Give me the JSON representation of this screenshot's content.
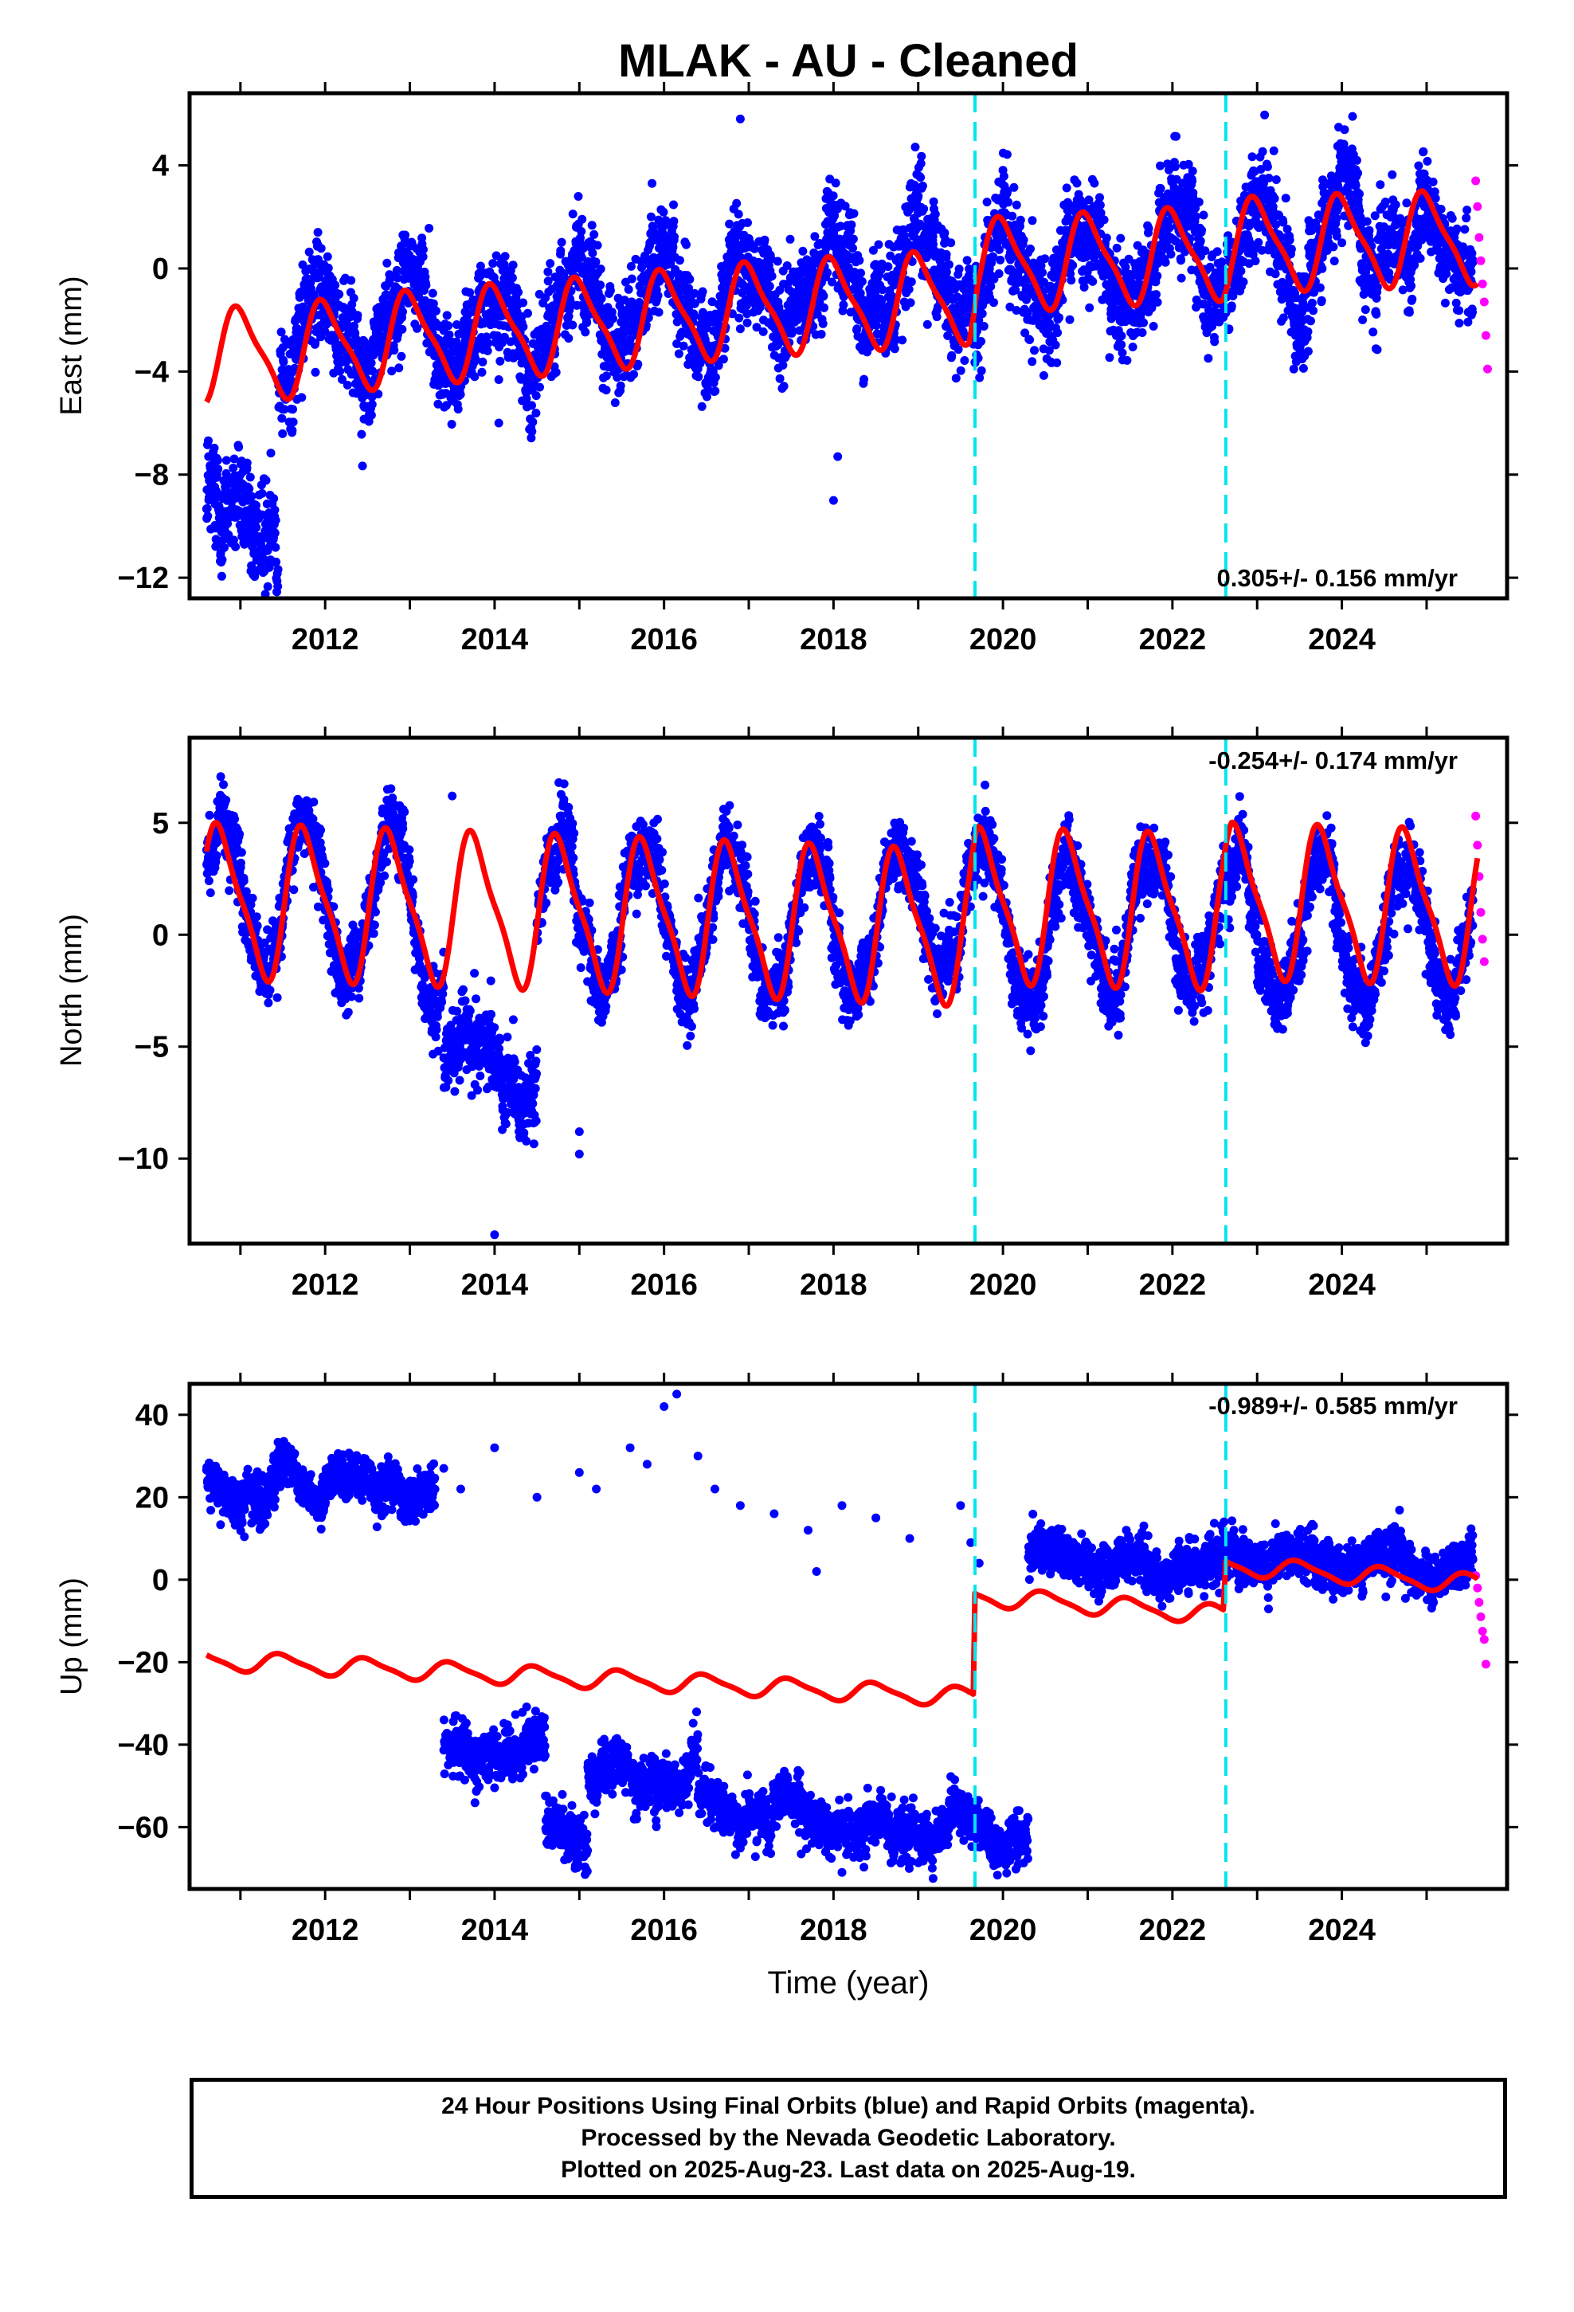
{
  "title": "MLAK  - AU - Cleaned",
  "xlabel": "Time (year)",
  "colors": {
    "final_orbits": "#0000ff",
    "rapid_orbits": "#ff00ff",
    "model": "#ff0000",
    "equipment_change": "#00e5ee"
  },
  "footer": {
    "line1": "24 Hour Positions Using Final Orbits (blue) and Rapid Orbits (magenta).",
    "line2": "Processed by the Nevada Geodetic Laboratory.",
    "line3": "Plotted on 2025-Aug-23. Last data on 2025-Aug-19."
  },
  "chart_data": [
    {
      "type": "scatter",
      "ylabel": "East (mm)",
      "xlim": [
        2010.4,
        2025.95
      ],
      "ylim": [
        -12.8,
        6.8
      ],
      "xticks": [
        "2012",
        "2014",
        "2016",
        "2018",
        "2020",
        "2022",
        "2024"
      ],
      "yticks": [
        "4",
        "0",
        "−4",
        "−8",
        "−12"
      ],
      "ytick_values": [
        4,
        0,
        -4,
        -8,
        -12
      ],
      "rate_text": "0.305+/- 0.156 mm/yr",
      "rate_position": "bottom-right",
      "equipment_changes": [
        2019.67,
        2022.63
      ],
      "series": [
        {
          "kind": "final_points",
          "data_start": 2010.6,
          "data_end": 2025.55,
          "points_per_year": 340,
          "segments": [
            {
              "x": [
                2010.6,
                2011.45
              ],
              "level": -8.5,
              "slope": -2.5,
              "amp": 0.8,
              "noise": 1.4
            },
            {
              "x": [
                2011.45,
                2025.55
              ],
              "level": -2.6,
              "slope": 0.3,
              "amp": 1.6,
              "noise": 1.2
            }
          ],
          "outliers": [
            [
              2018.05,
              -7.3
            ],
            [
              2018.0,
              -9.0
            ],
            [
              2014.05,
              -6.0
            ],
            [
              2016.9,
              5.8
            ]
          ]
        },
        {
          "kind": "rapid_points",
          "x": [
            2025.58,
            2025.6,
            2025.62,
            2025.64,
            2025.66,
            2025.68,
            2025.7,
            2025.72
          ],
          "y": [
            3.4,
            2.4,
            1.2,
            0.3,
            -0.6,
            -1.3,
            -2.6,
            -3.9
          ]
        },
        {
          "kind": "model",
          "offsets": [
            [
              2010.6,
              -3.4
            ],
            [
              2011.6,
              -3.2
            ],
            [
              2013.0,
              -2.7
            ],
            [
              2015.0,
              -2.2
            ],
            [
              2017.0,
              -1.6
            ],
            [
              2019.6,
              -1.1
            ],
            [
              2019.7,
              0.1
            ],
            [
              2022.6,
              0.6
            ],
            [
              2022.7,
              0.9
            ],
            [
              2025.6,
              1.2
            ]
          ],
          "amp": 1.7,
          "phase_year": 0.75
        }
      ]
    },
    {
      "type": "scatter",
      "ylabel": "North (mm)",
      "xlim": [
        2010.4,
        2025.95
      ],
      "ylim": [
        -13.8,
        8.8
      ],
      "xticks": [
        "2012",
        "2014",
        "2016",
        "2018",
        "2020",
        "2022",
        "2024"
      ],
      "yticks": [
        "5",
        "0",
        "−5",
        "−10"
      ],
      "ytick_values": [
        5,
        0,
        -5,
        -10
      ],
      "rate_text": "-0.254+/- 0.174 mm/yr",
      "rate_position": "top-right",
      "equipment_changes": [
        2019.67,
        2022.63
      ],
      "series": [
        {
          "kind": "final_points",
          "data_start": 2010.6,
          "data_end": 2025.55,
          "points_per_year": 340,
          "segments": [
            {
              "x": [
                2010.6,
                2013.4
              ],
              "level": 1.5,
              "slope": -0.1,
              "amp": 3.3,
              "noise": 1.0
            },
            {
              "x": [
                2013.4,
                2014.5
              ],
              "level": -5.2,
              "slope": -1.0,
              "amp": 1.5,
              "noise": 1.1
            },
            {
              "x": [
                2014.5,
                2025.55
              ],
              "level": 1.0,
              "slope": -0.05,
              "amp": 3.1,
              "noise": 1.0
            }
          ],
          "outliers": [
            [
              2014.0,
              -13.4
            ],
            [
              2015.0,
              -9.8
            ],
            [
              2015.0,
              -8.8
            ],
            [
              2013.5,
              6.2
            ]
          ]
        },
        {
          "kind": "rapid_points",
          "x": [
            2025.58,
            2025.6,
            2025.62,
            2025.64,
            2025.66,
            2025.68
          ],
          "y": [
            5.3,
            4.0,
            2.6,
            1.0,
            -0.2,
            -1.2
          ]
        },
        {
          "kind": "model",
          "offsets": [
            [
              2010.6,
              1.5
            ],
            [
              2014.0,
              1.1
            ],
            [
              2019.6,
              0.3
            ],
            [
              2019.7,
              1.3
            ],
            [
              2022.6,
              1.0
            ],
            [
              2022.7,
              1.5
            ],
            [
              2025.6,
              1.2
            ]
          ],
          "amp": 3.2,
          "phase_year": 0.52
        }
      ]
    },
    {
      "type": "scatter",
      "ylabel": "Up (mm)",
      "xlim": [
        2010.4,
        2025.95
      ],
      "ylim": [
        -75.0,
        47.5
      ],
      "xticks": [
        "2012",
        "2014",
        "2016",
        "2018",
        "2020",
        "2022",
        "2024"
      ],
      "yticks": [
        "40",
        "20",
        "0",
        "−20",
        "−40",
        "−60"
      ],
      "ytick_values": [
        40,
        20,
        0,
        -20,
        -40,
        -60
      ],
      "rate_text": "-0.989+/- 0.585 mm/yr",
      "rate_position": "top-right",
      "equipment_changes": [
        2019.67,
        2022.63
      ],
      "series": [
        {
          "kind": "final_points",
          "points_per_year": 320,
          "segments": [
            {
              "x": [
                2010.6,
                2013.3
              ],
              "level": 23.0,
              "slope": 0.0,
              "amp": 3.0,
              "noise": 3.5
            },
            {
              "x": [
                2013.4,
                2014.6
              ],
              "level": -43.0,
              "slope": 0.0,
              "amp": 3.0,
              "noise": 4.0
            },
            {
              "x": [
                2014.6,
                2015.1
              ],
              "level": -58.0,
              "slope": 0.0,
              "amp": 3.0,
              "noise": 4.0
            },
            {
              "x": [
                2015.1,
                2016.4
              ],
              "level": -46.0,
              "slope": 0.0,
              "amp": 3.0,
              "noise": 4.0
            },
            {
              "x": [
                2016.4,
                2019.65
              ],
              "level": -58.0,
              "slope": -0.5,
              "amp": 3.5,
              "noise": 4.0
            },
            {
              "x": [
                2019.67,
                2020.3
              ],
              "level": -62.0,
              "slope": 0.0,
              "amp": 3.0,
              "noise": 4.0
            },
            {
              "x": [
                2020.3,
                2025.55
              ],
              "level": 6.0,
              "slope": -0.6,
              "amp": 3.0,
              "noise": 3.5
            }
          ],
          "outliers": [
            [
              2013.6,
              22
            ],
            [
              2014.0,
              32
            ],
            [
              2014.5,
              20
            ],
            [
              2015.0,
              26
            ],
            [
              2015.2,
              22
            ],
            [
              2015.6,
              32
            ],
            [
              2015.8,
              28
            ],
            [
              2016.0,
              42
            ],
            [
              2016.15,
              45
            ],
            [
              2016.4,
              30
            ],
            [
              2016.6,
              22
            ],
            [
              2016.9,
              18
            ],
            [
              2017.3,
              16
            ],
            [
              2017.7,
              12
            ],
            [
              2017.8,
              2
            ],
            [
              2018.1,
              18
            ],
            [
              2018.5,
              15
            ],
            [
              2018.9,
              10
            ],
            [
              2019.5,
              18
            ],
            [
              2019.62,
              9
            ],
            [
              2019.72,
              4
            ],
            [
              2013.4,
              27
            ]
          ]
        },
        {
          "kind": "rapid_points",
          "x": [
            2025.58,
            2025.6,
            2025.62,
            2025.64,
            2025.66,
            2025.68,
            2025.7
          ],
          "y": [
            1.0,
            -2.0,
            -5.5,
            -9.0,
            -12.5,
            -14.5,
            -20.5
          ]
        },
        {
          "kind": "model",
          "offsets": [
            [
              2010.6,
              -19.5
            ],
            [
              2019.65,
              -28.5
            ],
            [
              2019.67,
              -4.0
            ],
            [
              2022.6,
              -8.5
            ],
            [
              2022.63,
              3.5
            ],
            [
              2025.6,
              -1.0
            ]
          ],
          "amp": 2.2,
          "phase_year": 0.25
        }
      ]
    }
  ]
}
